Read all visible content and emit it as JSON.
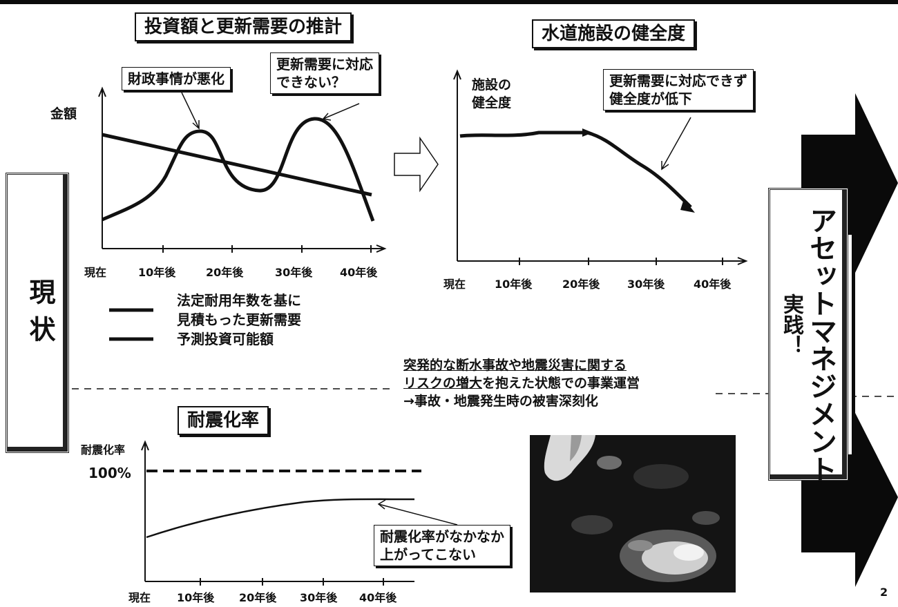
{
  "left_chart": {
    "title": "投資額と更新需要の推計",
    "ylabel": "金額",
    "callout_finance": "財政事情が悪化",
    "callout_renewal": [
      "更新需要に対応",
      "できない？"
    ],
    "xticks": [
      "現在",
      "10年後",
      "20年後",
      "30年後",
      "40年後"
    ]
  },
  "right_chart": {
    "title": "水道施設の健全度",
    "ylabel": [
      "施設の",
      "健全度"
    ],
    "callout": [
      "更新需要に対応できず",
      "健全度が低下"
    ],
    "xticks": [
      "現在",
      "10年後",
      "20年後",
      "30年後",
      "40年後"
    ]
  },
  "status_label": "現状",
  "legend": [
    {
      "text": [
        "法定耐用年数を基に",
        "見積もった更新需要"
      ]
    },
    {
      "text": [
        "予測投資可能額"
      ]
    }
  ],
  "risk": {
    "line1": "突発的な断水事故や地震災害に関する",
    "line2_underlined": "リスクの増大",
    "line2_rest": "を抱えた状態での事業運営",
    "line3": "→事故・地震発生時の被害深刻化"
  },
  "seismic_chart": {
    "title": "耐震化率",
    "ylabel": "耐震化率",
    "level_label": "100%",
    "callout": [
      "耐震化率がなかなか",
      "上がってこない"
    ],
    "xticks": [
      "現在",
      "10年後",
      "20年後",
      "30年後",
      "40年後"
    ]
  },
  "asset_management": {
    "main": "アセットマネジメント",
    "sub": "実践！"
  },
  "page_number": "2",
  "photo_icon": "earthquake-damage-photo"
}
